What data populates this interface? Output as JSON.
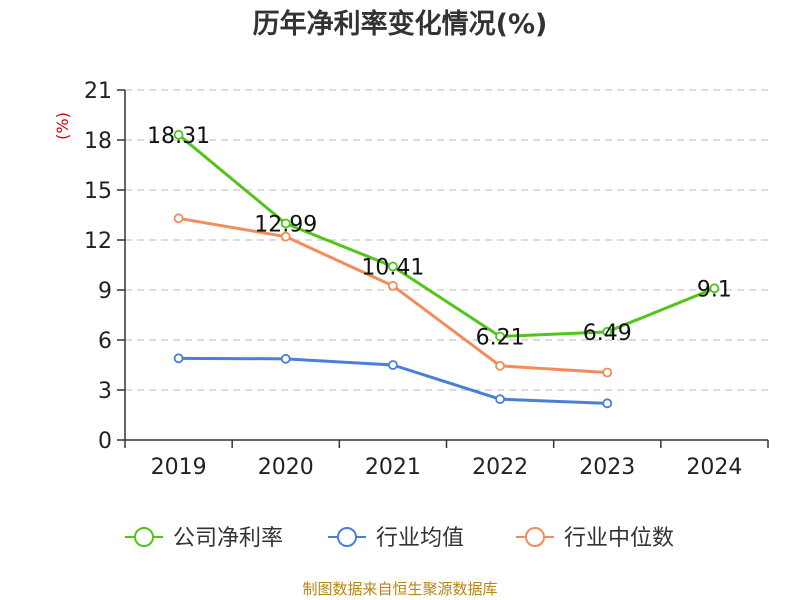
{
  "chart_data": {
    "type": "line",
    "title": "历年净利率变化情况(%)",
    "ylabel": "(%)",
    "xlabel": "",
    "ylim": [
      0,
      21
    ],
    "yticks": [
      0,
      3,
      6,
      9,
      12,
      15,
      18,
      21
    ],
    "categories": [
      "2019",
      "2020",
      "2021",
      "2022",
      "2023",
      "2024"
    ],
    "grid": true,
    "legend_position": "bottom",
    "series": [
      {
        "name": "公司净利率",
        "color": "#52c41a",
        "values": [
          18.31,
          12.99,
          10.41,
          6.21,
          6.49,
          9.1
        ],
        "labels": [
          "18.31",
          "12.99",
          "10.41",
          "6.21",
          "6.49",
          "9.1"
        ]
      },
      {
        "name": "行业均值",
        "color": "#4a7fd9",
        "values": [
          4.9,
          4.87,
          4.5,
          2.45,
          2.2,
          null
        ]
      },
      {
        "name": "行业中位数",
        "color": "#f28c5a",
        "values": [
          13.3,
          12.2,
          9.25,
          4.45,
          4.05,
          null
        ]
      }
    ],
    "source": "制图数据来自恒生聚源数据库"
  }
}
